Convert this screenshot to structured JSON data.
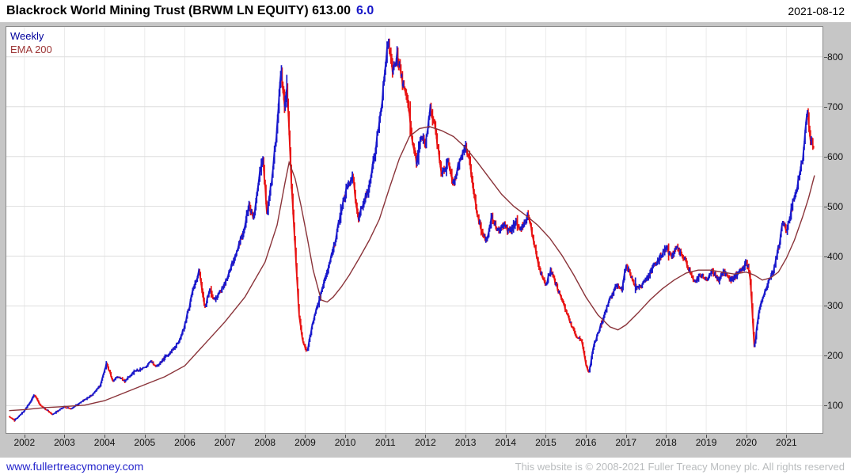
{
  "header": {
    "title": "Blackrock World Mining Trust (BRWM LN EQUITY) 613.00",
    "change": "6.0",
    "change_color": "#1616c8",
    "date": "2021-08-12"
  },
  "legend": {
    "frequency": "Weekly",
    "overlay": "EMA 200"
  },
  "footer": {
    "link": "www.fullertreacymoney.com",
    "copyright": "This website is © 2008-2021 Fuller Treacy Money plc. All rights reserved"
  },
  "chart_data": {
    "type": "line",
    "title": "Blackrock World Mining Trust (BRWM LN EQUITY)",
    "frequency": "Weekly",
    "overlay": "EMA 200",
    "last_price": 613.0,
    "change": 6.0,
    "date": "2021-08-12",
    "grid": true,
    "legend_position": "top-left",
    "y_ticks": [
      100,
      200,
      300,
      400,
      500,
      600,
      700,
      800
    ],
    "x_ticks": [
      2002,
      2003,
      2004,
      2005,
      2006,
      2007,
      2008,
      2009,
      2010,
      2011,
      2012,
      2013,
      2014,
      2015,
      2016,
      2017,
      2018,
      2019,
      2020,
      2021
    ],
    "x_range": [
      2001.55,
      2021.9
    ],
    "y_range": [
      45,
      860
    ],
    "colors": {
      "up": "#1818cc",
      "down": "#e81212",
      "ema": "#8a3339",
      "grid_h": "#dedede",
      "grid_v": "#ebebeb",
      "legend_weekly": "#00009c",
      "legend_ema": "#9c3434"
    },
    "price_path": [
      [
        2001.62,
        78
      ],
      [
        2001.75,
        70
      ],
      [
        2001.9,
        82
      ],
      [
        2002.0,
        90
      ],
      [
        2002.15,
        108
      ],
      [
        2002.25,
        122
      ],
      [
        2002.4,
        100
      ],
      [
        2002.55,
        92
      ],
      [
        2002.7,
        82
      ],
      [
        2002.85,
        90
      ],
      [
        2003.0,
        98
      ],
      [
        2003.15,
        93
      ],
      [
        2003.3,
        102
      ],
      [
        2003.5,
        112
      ],
      [
        2003.7,
        122
      ],
      [
        2003.9,
        142
      ],
      [
        2004.05,
        186
      ],
      [
        2004.2,
        150
      ],
      [
        2004.35,
        158
      ],
      [
        2004.5,
        148
      ],
      [
        2004.65,
        162
      ],
      [
        2004.8,
        170
      ],
      [
        2005.0,
        176
      ],
      [
        2005.15,
        188
      ],
      [
        2005.3,
        178
      ],
      [
        2005.5,
        196
      ],
      [
        2005.7,
        212
      ],
      [
        2005.85,
        228
      ],
      [
        2006.0,
        262
      ],
      [
        2006.2,
        330
      ],
      [
        2006.35,
        372
      ],
      [
        2006.5,
        298
      ],
      [
        2006.62,
        332
      ],
      [
        2006.75,
        312
      ],
      [
        2006.9,
        330
      ],
      [
        2007.0,
        346
      ],
      [
        2007.15,
        378
      ],
      [
        2007.3,
        412
      ],
      [
        2007.45,
        448
      ],
      [
        2007.6,
        500
      ],
      [
        2007.72,
        478
      ],
      [
        2007.85,
        560
      ],
      [
        2007.95,
        598
      ],
      [
        2008.05,
        484
      ],
      [
        2008.18,
        560
      ],
      [
        2008.3,
        660
      ],
      [
        2008.4,
        782
      ],
      [
        2008.48,
        700
      ],
      [
        2008.55,
        738
      ],
      [
        2008.65,
        560
      ],
      [
        2008.75,
        420
      ],
      [
        2008.85,
        280
      ],
      [
        2008.95,
        225
      ],
      [
        2009.05,
        208
      ],
      [
        2009.18,
        262
      ],
      [
        2009.3,
        300
      ],
      [
        2009.45,
        340
      ],
      [
        2009.6,
        382
      ],
      [
        2009.75,
        432
      ],
      [
        2009.9,
        492
      ],
      [
        2010.05,
        540
      ],
      [
        2010.18,
        562
      ],
      [
        2010.32,
        476
      ],
      [
        2010.45,
        506
      ],
      [
        2010.6,
        540
      ],
      [
        2010.75,
        612
      ],
      [
        2010.9,
        696
      ],
      [
        2011.0,
        788
      ],
      [
        2011.08,
        830
      ],
      [
        2011.18,
        772
      ],
      [
        2011.3,
        802
      ],
      [
        2011.42,
        752
      ],
      [
        2011.55,
        712
      ],
      [
        2011.68,
        622
      ],
      [
        2011.78,
        586
      ],
      [
        2011.9,
        648
      ],
      [
        2012.0,
        622
      ],
      [
        2012.12,
        696
      ],
      [
        2012.25,
        656
      ],
      [
        2012.4,
        560
      ],
      [
        2012.55,
        592
      ],
      [
        2012.7,
        546
      ],
      [
        2012.85,
        590
      ],
      [
        2013.0,
        622
      ],
      [
        2013.1,
        592
      ],
      [
        2013.25,
        502
      ],
      [
        2013.4,
        448
      ],
      [
        2013.52,
        428
      ],
      [
        2013.65,
        478
      ],
      [
        2013.8,
        452
      ],
      [
        2013.95,
        462
      ],
      [
        2014.1,
        448
      ],
      [
        2014.25,
        468
      ],
      [
        2014.4,
        456
      ],
      [
        2014.55,
        482
      ],
      [
        2014.7,
        430
      ],
      [
        2014.85,
        372
      ],
      [
        2015.0,
        342
      ],
      [
        2015.12,
        372
      ],
      [
        2015.28,
        338
      ],
      [
        2015.45,
        302
      ],
      [
        2015.6,
        268
      ],
      [
        2015.75,
        242
      ],
      [
        2015.9,
        228
      ],
      [
        2016.0,
        182
      ],
      [
        2016.08,
        166
      ],
      [
        2016.2,
        222
      ],
      [
        2016.35,
        256
      ],
      [
        2016.5,
        292
      ],
      [
        2016.62,
        318
      ],
      [
        2016.78,
        342
      ],
      [
        2016.9,
        332
      ],
      [
        2017.0,
        382
      ],
      [
        2017.12,
        362
      ],
      [
        2017.25,
        336
      ],
      [
        2017.4,
        342
      ],
      [
        2017.55,
        358
      ],
      [
        2017.7,
        382
      ],
      [
        2017.85,
        398
      ],
      [
        2018.0,
        418
      ],
      [
        2018.12,
        398
      ],
      [
        2018.25,
        416
      ],
      [
        2018.4,
        402
      ],
      [
        2018.55,
        378
      ],
      [
        2018.7,
        348
      ],
      [
        2018.85,
        362
      ],
      [
        2019.0,
        352
      ],
      [
        2019.15,
        372
      ],
      [
        2019.3,
        352
      ],
      [
        2019.45,
        368
      ],
      [
        2019.6,
        352
      ],
      [
        2019.75,
        362
      ],
      [
        2019.9,
        372
      ],
      [
        2020.0,
        392
      ],
      [
        2020.1,
        356
      ],
      [
        2020.2,
        212
      ],
      [
        2020.3,
        282
      ],
      [
        2020.42,
        322
      ],
      [
        2020.55,
        348
      ],
      [
        2020.68,
        372
      ],
      [
        2020.8,
        416
      ],
      [
        2020.9,
        466
      ],
      [
        2021.0,
        452
      ],
      [
        2021.1,
        486
      ],
      [
        2021.2,
        522
      ],
      [
        2021.32,
        558
      ],
      [
        2021.42,
        602
      ],
      [
        2021.52,
        692
      ],
      [
        2021.6,
        638
      ],
      [
        2021.68,
        613
      ]
    ],
    "ema200_path": [
      [
        2001.62,
        90
      ],
      [
        2002.0,
        92
      ],
      [
        2002.5,
        96
      ],
      [
        2003.0,
        98
      ],
      [
        2003.5,
        101
      ],
      [
        2004.0,
        110
      ],
      [
        2004.5,
        126
      ],
      [
        2005.0,
        142
      ],
      [
        2005.5,
        158
      ],
      [
        2006.0,
        180
      ],
      [
        2006.5,
        224
      ],
      [
        2007.0,
        268
      ],
      [
        2007.5,
        318
      ],
      [
        2008.0,
        388
      ],
      [
        2008.3,
        462
      ],
      [
        2008.5,
        548
      ],
      [
        2008.6,
        588
      ],
      [
        2008.75,
        556
      ],
      [
        2008.9,
        500
      ],
      [
        2009.05,
        438
      ],
      [
        2009.2,
        372
      ],
      [
        2009.4,
        312
      ],
      [
        2009.55,
        308
      ],
      [
        2009.7,
        318
      ],
      [
        2009.9,
        338
      ],
      [
        2010.1,
        362
      ],
      [
        2010.35,
        396
      ],
      [
        2010.6,
        432
      ],
      [
        2010.85,
        474
      ],
      [
        2011.1,
        536
      ],
      [
        2011.35,
        596
      ],
      [
        2011.6,
        640
      ],
      [
        2011.85,
        656
      ],
      [
        2012.1,
        660
      ],
      [
        2012.4,
        652
      ],
      [
        2012.7,
        640
      ],
      [
        2013.0,
        618
      ],
      [
        2013.3,
        588
      ],
      [
        2013.6,
        556
      ],
      [
        2013.9,
        524
      ],
      [
        2014.2,
        500
      ],
      [
        2014.5,
        482
      ],
      [
        2014.8,
        462
      ],
      [
        2015.1,
        436
      ],
      [
        2015.4,
        402
      ],
      [
        2015.7,
        362
      ],
      [
        2016.0,
        318
      ],
      [
        2016.3,
        282
      ],
      [
        2016.6,
        258
      ],
      [
        2016.8,
        252
      ],
      [
        2017.0,
        262
      ],
      [
        2017.3,
        286
      ],
      [
        2017.6,
        312
      ],
      [
        2017.9,
        334
      ],
      [
        2018.2,
        352
      ],
      [
        2018.5,
        366
      ],
      [
        2018.8,
        372
      ],
      [
        2019.1,
        372
      ],
      [
        2019.4,
        368
      ],
      [
        2019.7,
        364
      ],
      [
        2020.0,
        368
      ],
      [
        2020.2,
        362
      ],
      [
        2020.4,
        352
      ],
      [
        2020.6,
        356
      ],
      [
        2020.8,
        368
      ],
      [
        2021.0,
        396
      ],
      [
        2021.2,
        432
      ],
      [
        2021.4,
        478
      ],
      [
        2021.55,
        516
      ],
      [
        2021.7,
        562
      ]
    ]
  }
}
